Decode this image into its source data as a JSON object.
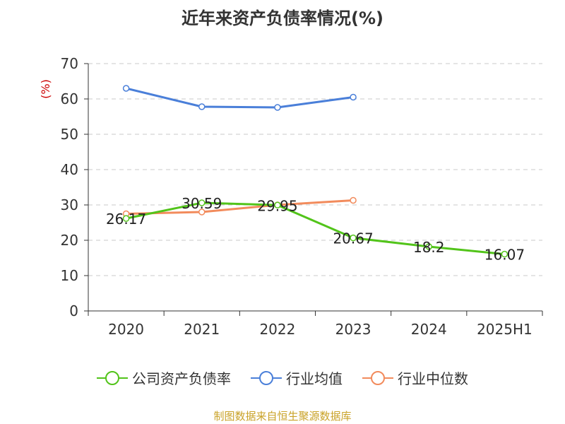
{
  "chart_data": {
    "type": "line",
    "title": "近年来资产负债率情况(%)",
    "ylabel": "(%)",
    "xlabel": "",
    "categories": [
      "2020",
      "2021",
      "2022",
      "2023",
      "2024",
      "2025H1"
    ],
    "ylim": [
      0,
      70
    ],
    "yticks": [
      "0",
      "10",
      "20",
      "30",
      "40",
      "50",
      "60",
      "70"
    ],
    "grid": true,
    "legend_position": "bottom",
    "series": [
      {
        "name": "公司资产负债率",
        "color": "#52c41a",
        "values": [
          26.17,
          30.59,
          29.95,
          20.67,
          18.2,
          16.07
        ],
        "labels": [
          "26.17",
          "30.59",
          "29.95",
          "20.67",
          "18.2",
          "16.07"
        ]
      },
      {
        "name": "行业均值",
        "color": "#4a7fd9",
        "values": [
          63.0,
          57.8,
          57.6,
          60.5,
          null,
          null
        ],
        "labels": []
      },
      {
        "name": "行业中位数",
        "color": "#f28b5c",
        "values": [
          27.5,
          28.0,
          30.0,
          31.3,
          null,
          null
        ],
        "labels": []
      }
    ]
  },
  "source": "制图数据来自恒生聚源数据库"
}
